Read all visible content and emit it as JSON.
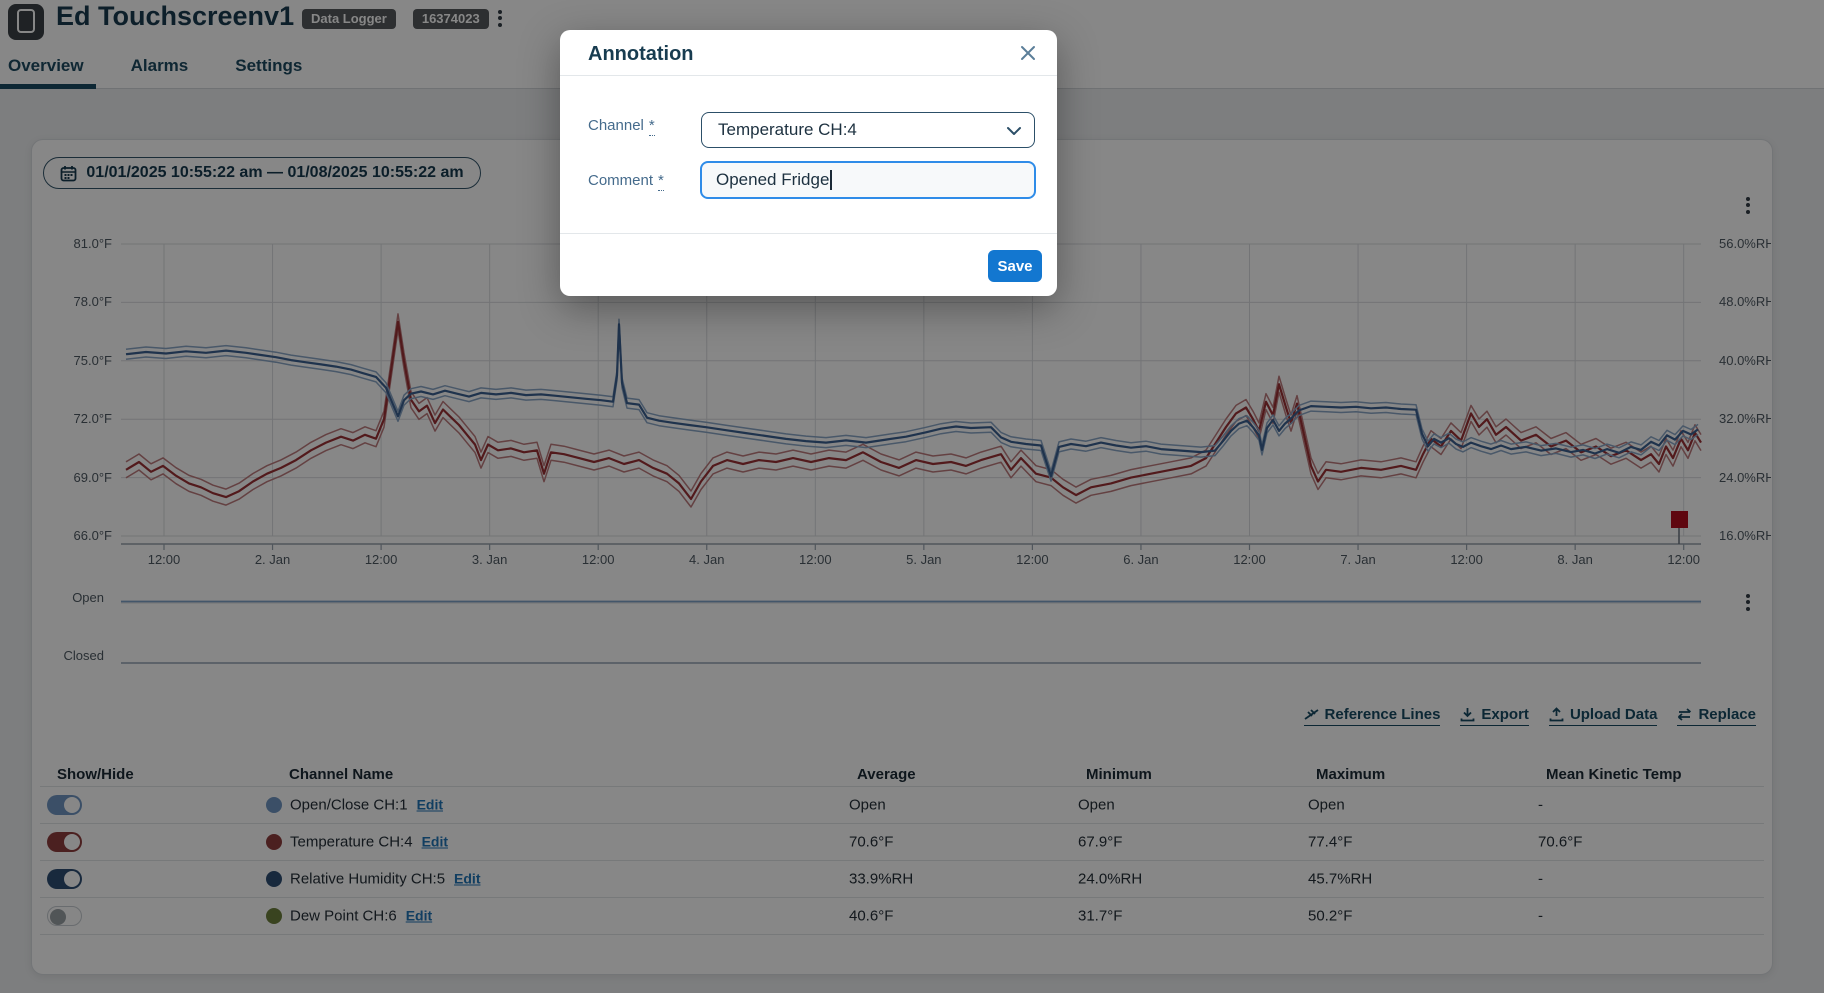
{
  "header": {
    "title": "Ed Touchscreenv1",
    "badges": [
      "Data Logger",
      "16374023"
    ],
    "tabs": [
      {
        "label": "Overview",
        "active": true
      },
      {
        "label": "Alarms",
        "active": false
      },
      {
        "label": "Settings",
        "active": false
      }
    ]
  },
  "toolbar": {
    "date_range": "01/01/2025 10:55:22 am — 01/08/2025 10:55:22 am"
  },
  "modal": {
    "title": "Annotation",
    "fields": [
      {
        "label": "Channel",
        "required": "*",
        "type": "select",
        "value": "Temperature CH:4"
      },
      {
        "label": "Comment",
        "required": "*",
        "type": "text",
        "value": "Opened Fridge"
      }
    ],
    "save_label": "Save"
  },
  "actions": [
    {
      "label": "Reference Lines",
      "icon": "reference-lines-icon"
    },
    {
      "label": "Export",
      "icon": "download-icon"
    },
    {
      "label": "Upload Data",
      "icon": "upload-icon"
    },
    {
      "label": "Replace",
      "icon": "swap-icon"
    }
  ],
  "table": {
    "headers": [
      "Show/Hide",
      "Channel Name",
      "Average",
      "Minimum",
      "Maximum",
      "Mean Kinetic Temp"
    ],
    "edit_label": "Edit",
    "rows": [
      {
        "toggle_on": true,
        "toggle_color": "#7096c2",
        "dot_color": "#7096c2",
        "name": "Open/Close CH:1",
        "average": "Open",
        "minimum": "Open",
        "maximum": "Open",
        "mkt": "-"
      },
      {
        "toggle_on": true,
        "toggle_color": "#8f3d3d",
        "dot_color": "#8f3d3d",
        "name": "Temperature CH:4",
        "average": "70.6°F",
        "minimum": "67.9°F",
        "maximum": "77.4°F",
        "mkt": "70.6°F"
      },
      {
        "toggle_on": true,
        "toggle_color": "#2f4f74",
        "dot_color": "#2f4f74",
        "name": "Relative Humidity CH:5",
        "average": "33.9%RH",
        "minimum": "24.0%RH",
        "maximum": "45.7%RH",
        "mkt": "-"
      },
      {
        "toggle_on": false,
        "toggle_color": "#c9ced3",
        "dot_color": "#6d7f3c",
        "name": "Dew Point CH:6",
        "average": "40.6°F",
        "minimum": "31.7°F",
        "maximum": "50.2°F",
        "mkt": "-"
      }
    ]
  },
  "chart_data": {
    "type": "line",
    "x_tick_labels": [
      "12:00",
      "2. Jan",
      "12:00",
      "3. Jan",
      "12:00",
      "4. Jan",
      "12:00",
      "5. Jan",
      "12:00",
      "6. Jan",
      "12:00",
      "7. Jan",
      "12:00",
      "8. Jan",
      "12:00"
    ],
    "y_left": {
      "unit": "°F",
      "min": 66,
      "max": 81,
      "tick_labels": [
        "81.0°F",
        "78.0°F",
        "75.0°F",
        "72.0°F",
        "69.0°F",
        "66.0°F"
      ]
    },
    "y_right": {
      "unit": "%RH",
      "min": 16,
      "max": 56,
      "tick_labels": [
        "56.0%RH",
        "48.0%RH",
        "40.0%RH",
        "32.0%RH",
        "24.0%RH",
        "16.0%RH"
      ]
    },
    "door_axis": {
      "labels": [
        "Open",
        "Closed"
      ]
    },
    "annotation_marker": {
      "x": 1678,
      "shape": "flag",
      "color": "#b30f1f"
    },
    "series": [
      {
        "name": "Temperature CH:4",
        "axis": "left",
        "color": "#9c3136",
        "band_color": "#bd7b7e",
        "points": [
          [
            125,
            69.4
          ],
          [
            138,
            69.8
          ],
          [
            150,
            69.3
          ],
          [
            162,
            69.6
          ],
          [
            175,
            69.1
          ],
          [
            188,
            68.7
          ],
          [
            200,
            68.5
          ],
          [
            212,
            68.2
          ],
          [
            225,
            68.0
          ],
          [
            238,
            68.3
          ],
          [
            252,
            68.8
          ],
          [
            266,
            69.2
          ],
          [
            280,
            69.5
          ],
          [
            295,
            69.9
          ],
          [
            310,
            70.4
          ],
          [
            325,
            70.8
          ],
          [
            340,
            71.1
          ],
          [
            352,
            70.9
          ],
          [
            364,
            71.2
          ],
          [
            375,
            71.0
          ],
          [
            383,
            72.0
          ],
          [
            390,
            74.5
          ],
          [
            397,
            77.0
          ],
          [
            403,
            75.0
          ],
          [
            410,
            73.0
          ],
          [
            418,
            72.4
          ],
          [
            426,
            72.7
          ],
          [
            434,
            71.8
          ],
          [
            442,
            72.5
          ],
          [
            450,
            72.1
          ],
          [
            458,
            71.7
          ],
          [
            466,
            71.2
          ],
          [
            474,
            70.7
          ],
          [
            480,
            69.9
          ],
          [
            487,
            70.7
          ],
          [
            497,
            70.4
          ],
          [
            510,
            70.5
          ],
          [
            523,
            70.3
          ],
          [
            536,
            70.4
          ],
          [
            543,
            69.2
          ],
          [
            550,
            70.3
          ],
          [
            563,
            70.2
          ],
          [
            578,
            70.0
          ],
          [
            593,
            69.8
          ],
          [
            608,
            70.0
          ],
          [
            623,
            69.7
          ],
          [
            638,
            69.9
          ],
          [
            652,
            69.5
          ],
          [
            666,
            69.2
          ],
          [
            678,
            68.7
          ],
          [
            690,
            67.9
          ],
          [
            700,
            68.8
          ],
          [
            712,
            69.6
          ],
          [
            726,
            69.9
          ],
          [
            742,
            69.7
          ],
          [
            758,
            69.9
          ],
          [
            775,
            69.8
          ],
          [
            792,
            70.0
          ],
          [
            810,
            69.8
          ],
          [
            828,
            70.0
          ],
          [
            845,
            69.9
          ],
          [
            862,
            70.3
          ],
          [
            880,
            69.8
          ],
          [
            898,
            69.5
          ],
          [
            915,
            69.9
          ],
          [
            932,
            69.7
          ],
          [
            950,
            69.8
          ],
          [
            965,
            69.6
          ],
          [
            980,
            69.9
          ],
          [
            1000,
            70.2
          ],
          [
            1010,
            69.4
          ],
          [
            1020,
            70.0
          ],
          [
            1035,
            69.2
          ],
          [
            1050,
            69.0
          ],
          [
            1062,
            68.5
          ],
          [
            1075,
            68.1
          ],
          [
            1090,
            68.5
          ],
          [
            1110,
            68.7
          ],
          [
            1130,
            69.0
          ],
          [
            1150,
            69.2
          ],
          [
            1170,
            69.4
          ],
          [
            1190,
            69.6
          ],
          [
            1205,
            70.0
          ],
          [
            1215,
            70.8
          ],
          [
            1225,
            71.6
          ],
          [
            1235,
            72.3
          ],
          [
            1245,
            72.6
          ],
          [
            1252,
            72.0
          ],
          [
            1258,
            71.4
          ],
          [
            1265,
            72.9
          ],
          [
            1272,
            72.2
          ],
          [
            1278,
            73.8
          ],
          [
            1285,
            72.6
          ],
          [
            1290,
            71.8
          ],
          [
            1296,
            72.8
          ],
          [
            1303,
            71.2
          ],
          [
            1310,
            69.6
          ],
          [
            1317,
            68.8
          ],
          [
            1325,
            69.4
          ],
          [
            1340,
            69.3
          ],
          [
            1360,
            69.5
          ],
          [
            1380,
            69.4
          ],
          [
            1400,
            69.6
          ],
          [
            1415,
            69.4
          ],
          [
            1422,
            70.2
          ],
          [
            1430,
            71.0
          ],
          [
            1440,
            70.6
          ],
          [
            1450,
            71.4
          ],
          [
            1460,
            70.9
          ],
          [
            1470,
            72.3
          ],
          [
            1478,
            71.6
          ],
          [
            1486,
            72.0
          ],
          [
            1495,
            71.2
          ],
          [
            1505,
            71.6
          ],
          [
            1520,
            70.9
          ],
          [
            1535,
            71.2
          ],
          [
            1550,
            70.6
          ],
          [
            1565,
            70.9
          ],
          [
            1580,
            70.3
          ],
          [
            1595,
            70.6
          ],
          [
            1610,
            70.1
          ],
          [
            1625,
            70.4
          ],
          [
            1640,
            69.9
          ],
          [
            1650,
            70.2
          ],
          [
            1658,
            69.7
          ],
          [
            1665,
            70.6
          ],
          [
            1672,
            70.0
          ],
          [
            1680,
            71.0
          ],
          [
            1687,
            70.4
          ],
          [
            1694,
            71.3
          ],
          [
            1700,
            70.8
          ]
        ]
      },
      {
        "name": "Relative Humidity CH:5",
        "axis": "right",
        "color": "#3c6191",
        "band_color": "#8aa6c6",
        "points": [
          [
            125,
            40.9
          ],
          [
            145,
            41.2
          ],
          [
            165,
            41.0
          ],
          [
            185,
            41.3
          ],
          [
            205,
            41.1
          ],
          [
            225,
            41.4
          ],
          [
            245,
            41.1
          ],
          [
            260,
            40.8
          ],
          [
            275,
            40.5
          ],
          [
            290,
            40.1
          ],
          [
            305,
            39.8
          ],
          [
            320,
            39.5
          ],
          [
            335,
            39.2
          ],
          [
            350,
            38.8
          ],
          [
            362,
            38.3
          ],
          [
            375,
            37.8
          ],
          [
            385,
            36.3
          ],
          [
            392,
            34.0
          ],
          [
            397,
            32.4
          ],
          [
            403,
            34.6
          ],
          [
            410,
            35.5
          ],
          [
            420,
            35.8
          ],
          [
            432,
            35.4
          ],
          [
            444,
            35.9
          ],
          [
            456,
            35.5
          ],
          [
            468,
            35.1
          ],
          [
            480,
            35.6
          ],
          [
            495,
            35.4
          ],
          [
            510,
            35.6
          ],
          [
            525,
            35.3
          ],
          [
            540,
            35.4
          ],
          [
            555,
            35.2
          ],
          [
            570,
            35.0
          ],
          [
            585,
            34.8
          ],
          [
            600,
            34.6
          ],
          [
            612,
            34.4
          ],
          [
            616,
            38.0
          ],
          [
            618,
            45.0
          ],
          [
            621,
            37.0
          ],
          [
            626,
            34.2
          ],
          [
            638,
            34.0
          ],
          [
            646,
            32.2
          ],
          [
            658,
            31.8
          ],
          [
            672,
            31.5
          ],
          [
            688,
            31.2
          ],
          [
            705,
            30.9
          ],
          [
            725,
            30.5
          ],
          [
            745,
            30.1
          ],
          [
            765,
            29.7
          ],
          [
            785,
            29.3
          ],
          [
            805,
            29.0
          ],
          [
            825,
            28.8
          ],
          [
            845,
            29.1
          ],
          [
            865,
            28.8
          ],
          [
            885,
            29.2
          ],
          [
            905,
            29.6
          ],
          [
            925,
            30.2
          ],
          [
            940,
            30.7
          ],
          [
            955,
            31.0
          ],
          [
            970,
            30.8
          ],
          [
            990,
            30.9
          ],
          [
            1000,
            29.5
          ],
          [
            1010,
            28.9
          ],
          [
            1025,
            28.6
          ],
          [
            1040,
            28.4
          ],
          [
            1050,
            24.2
          ],
          [
            1058,
            28.2
          ],
          [
            1070,
            28.6
          ],
          [
            1085,
            28.3
          ],
          [
            1100,
            28.8
          ],
          [
            1115,
            28.4
          ],
          [
            1130,
            28.1
          ],
          [
            1145,
            28.3
          ],
          [
            1160,
            27.9
          ],
          [
            1180,
            27.7
          ],
          [
            1200,
            27.5
          ],
          [
            1214,
            27.7
          ],
          [
            1222,
            29.0
          ],
          [
            1230,
            30.4
          ],
          [
            1238,
            31.4
          ],
          [
            1246,
            31.8
          ],
          [
            1252,
            30.9
          ],
          [
            1258,
            29.8
          ],
          [
            1261,
            27.8
          ],
          [
            1266,
            30.8
          ],
          [
            1272,
            31.9
          ],
          [
            1278,
            30.4
          ],
          [
            1284,
            31.4
          ],
          [
            1290,
            32.1
          ],
          [
            1298,
            33.2
          ],
          [
            1310,
            33.8
          ],
          [
            1325,
            33.7
          ],
          [
            1340,
            33.6
          ],
          [
            1355,
            33.7
          ],
          [
            1370,
            33.5
          ],
          [
            1385,
            33.6
          ],
          [
            1400,
            33.4
          ],
          [
            1415,
            33.3
          ],
          [
            1421,
            30.0
          ],
          [
            1427,
            28.3
          ],
          [
            1433,
            29.3
          ],
          [
            1440,
            28.8
          ],
          [
            1448,
            29.4
          ],
          [
            1455,
            28.6
          ],
          [
            1462,
            28.2
          ],
          [
            1470,
            28.8
          ],
          [
            1480,
            28.3
          ],
          [
            1490,
            27.9
          ],
          [
            1500,
            28.4
          ],
          [
            1510,
            27.9
          ],
          [
            1525,
            28.2
          ],
          [
            1540,
            27.7
          ],
          [
            1555,
            28.0
          ],
          [
            1570,
            27.5
          ],
          [
            1582,
            27.8
          ],
          [
            1594,
            27.3
          ],
          [
            1606,
            27.9
          ],
          [
            1618,
            27.4
          ],
          [
            1630,
            28.2
          ],
          [
            1640,
            27.8
          ],
          [
            1650,
            28.9
          ],
          [
            1658,
            28.4
          ],
          [
            1666,
            29.8
          ],
          [
            1674,
            29.2
          ],
          [
            1682,
            30.4
          ],
          [
            1690,
            29.9
          ],
          [
            1697,
            30.6
          ]
        ]
      },
      {
        "name": "Open/Close CH:1",
        "axis": "door",
        "color": "#7fa2c8",
        "constant": "Open"
      }
    ]
  },
  "colors": {
    "navy_text": "#1a3c50",
    "tab_accent": "#1a4a63",
    "link_blue": "#2076b8",
    "save_blue": "#1377d0",
    "badge_bg": "#55595d",
    "flag_red": "#b30f1f",
    "grid": "#d9dcdf",
    "axis_line": "#97a3ae"
  }
}
